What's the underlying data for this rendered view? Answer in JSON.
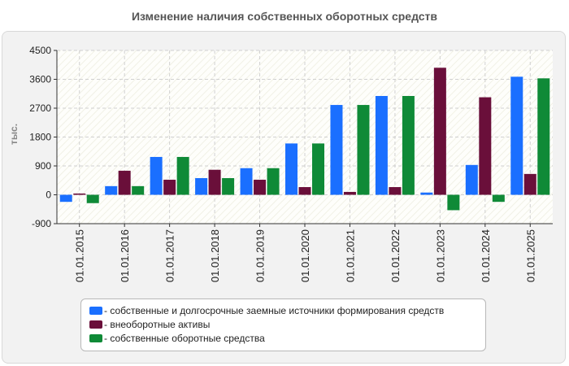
{
  "chart_data": {
    "type": "bar",
    "title": "Изменение наличия собственных оборотных средств",
    "ylabel": "тыс.",
    "xlabel": "",
    "ylim": [
      -900,
      4500
    ],
    "yticks": [
      4500,
      3600,
      2700,
      1800,
      900,
      0,
      -900
    ],
    "categories": [
      "01.01.2015",
      "01.01.2016",
      "01.01.2017",
      "01.01.2018",
      "01.01.2019",
      "01.01.2020",
      "01.01.2021",
      "01.01.2022",
      "01.01.2023",
      "01.01.2024",
      "01.01.2025"
    ],
    "series": [
      {
        "name": "собственные и долгосрочные заемные источники формирования средств",
        "color": "#1a6fff",
        "values": [
          -220,
          270,
          1180,
          520,
          830,
          1600,
          2800,
          3080,
          70,
          930,
          3680
        ]
      },
      {
        "name": "внеоборотные активы",
        "color": "#6a0f3a",
        "values": [
          40,
          750,
          470,
          780,
          470,
          240,
          90,
          240,
          3960,
          3040,
          650
        ]
      },
      {
        "name": "собственные оборотные средства",
        "color": "#0f8a37",
        "values": [
          -260,
          270,
          1180,
          520,
          830,
          1600,
          2800,
          3080,
          -480,
          -220,
          3630
        ]
      }
    ],
    "legend_position": "bottom"
  }
}
